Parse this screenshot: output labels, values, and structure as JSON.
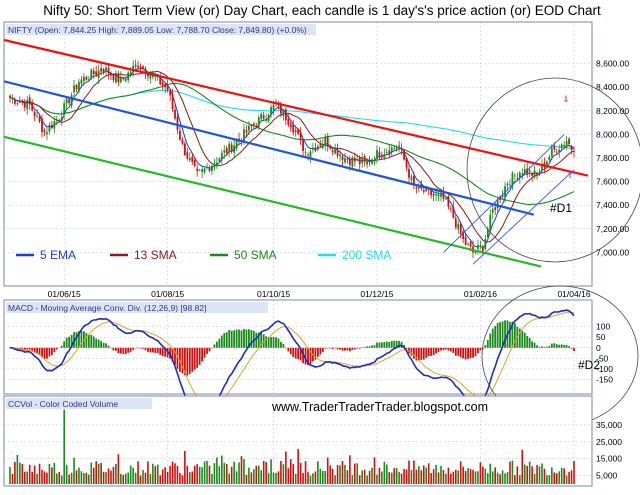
{
  "title": "Nifty 50: Short Term View (or) Day Chart, each candle is 1 day's's price action (or) EOD Chart",
  "watermark": "www.TraderTraderTrader.blogspot.com",
  "colors": {
    "up": "#1a8a1a",
    "down": "#cc1111",
    "ema5": "#1a3fd1",
    "sma13": "#8b1a1a",
    "sma50": "#1a8a1a",
    "sma200": "#22ddee",
    "trend_red": "#ee1111",
    "trend_blue": "#1f55dd",
    "trend_green": "#22bb22",
    "channel": "#3355ee",
    "macd": "#1a2fc0",
    "signal": "#e0a030",
    "grid": "#b8c4e0"
  },
  "price_panel": {
    "header": "NIFTY (Open: 7,844.25  High: 7,889.05  Low: 7,788.70  Close: 7,849.80) (+0.0%)",
    "y_ticks": [
      "8,600.00",
      "8,400.00",
      "8,200.00",
      "8,000.00",
      "7,800.00",
      "7,600.00",
      "7,400.00",
      "7,200.00",
      "7,000.00"
    ],
    "annotation": "#D1",
    "legend": [
      {
        "label": "5 EMA",
        "color": "#1a3fd1"
      },
      {
        "label": "13 SMA",
        "color": "#8b1a1a"
      },
      {
        "label": "50 SMA",
        "color": "#1a8a1a"
      },
      {
        "label": "200 SMA",
        "color": "#22ddee"
      }
    ]
  },
  "x_ticks": [
    "01/06/15",
    "01/08/15",
    "01/10/15",
    "01/12/15",
    "01/02/16",
    "01/04/16"
  ],
  "macd_panel": {
    "header": "MACD - Moving Average Conv. Div. (12,26,9) [98.82]",
    "y_ticks": [
      "100",
      "50",
      "0",
      "-50",
      "-100",
      "-150"
    ],
    "annotation": "#D2"
  },
  "volume_panel": {
    "header": "CCVol - Color Coded Volume",
    "y_ticks": [
      "35,000",
      "25,000",
      "15,000",
      "5,000"
    ]
  },
  "chart_data": {
    "type": "candlestick",
    "title": "Nifty 50: Short Term View (or) Day Chart, each candle is 1 day's's price action (or) EOD Chart",
    "series_names": [
      "5 EMA",
      "13 SMA",
      "50 SMA",
      "200 SMA"
    ],
    "last_bar": {
      "open": 7844.25,
      "high": 7889.05,
      "low": 7788.7,
      "close": 7849.8,
      "change_pct": 0.0
    },
    "price_ylim": [
      6800,
      8800
    ],
    "macd_ylim": [
      -200,
      160
    ],
    "macd_value": 98.82,
    "volume_ylim": [
      0,
      45000
    ],
    "period_start": "2015-05-01",
    "period_end": "2016-04-20",
    "bar_count": 230,
    "close_path": [
      {
        "i": 0,
        "v": 8310
      },
      {
        "i": 8,
        "v": 8250
      },
      {
        "i": 14,
        "v": 8020
      },
      {
        "i": 20,
        "v": 8150
      },
      {
        "i": 28,
        "v": 8450
      },
      {
        "i": 38,
        "v": 8560
      },
      {
        "i": 45,
        "v": 8450
      },
      {
        "i": 52,
        "v": 8600
      },
      {
        "i": 58,
        "v": 8500
      },
      {
        "i": 64,
        "v": 8380
      },
      {
        "i": 70,
        "v": 7900
      },
      {
        "i": 76,
        "v": 7650
      },
      {
        "i": 82,
        "v": 7750
      },
      {
        "i": 90,
        "v": 7900
      },
      {
        "i": 100,
        "v": 8100
      },
      {
        "i": 108,
        "v": 8250
      },
      {
        "i": 114,
        "v": 8100
      },
      {
        "i": 120,
        "v": 7850
      },
      {
        "i": 128,
        "v": 7950
      },
      {
        "i": 136,
        "v": 7800
      },
      {
        "i": 144,
        "v": 7750
      },
      {
        "i": 150,
        "v": 7850
      },
      {
        "i": 158,
        "v": 7900
      },
      {
        "i": 164,
        "v": 7550
      },
      {
        "i": 170,
        "v": 7500
      },
      {
        "i": 176,
        "v": 7450
      },
      {
        "i": 180,
        "v": 7300
      },
      {
        "i": 184,
        "v": 7100
      },
      {
        "i": 188,
        "v": 7000
      },
      {
        "i": 192,
        "v": 7050
      },
      {
        "i": 196,
        "v": 7350
      },
      {
        "i": 202,
        "v": 7600
      },
      {
        "i": 208,
        "v": 7700
      },
      {
        "i": 214,
        "v": 7650
      },
      {
        "i": 220,
        "v": 7850
      },
      {
        "i": 226,
        "v": 7950
      },
      {
        "i": 229,
        "v": 7850
      }
    ],
    "trendlines": [
      {
        "name": "red",
        "from": {
          "i": 0,
          "v": 8800
        },
        "to": {
          "i": 229,
          "v": 7650
        }
      },
      {
        "name": "blue",
        "from": {
          "i": 0,
          "v": 8450
        },
        "to": {
          "i": 207,
          "v": 7320
        }
      },
      {
        "name": "green",
        "from": {
          "i": 0,
          "v": 7980
        },
        "to": {
          "i": 210,
          "v": 6880
        }
      }
    ]
  }
}
